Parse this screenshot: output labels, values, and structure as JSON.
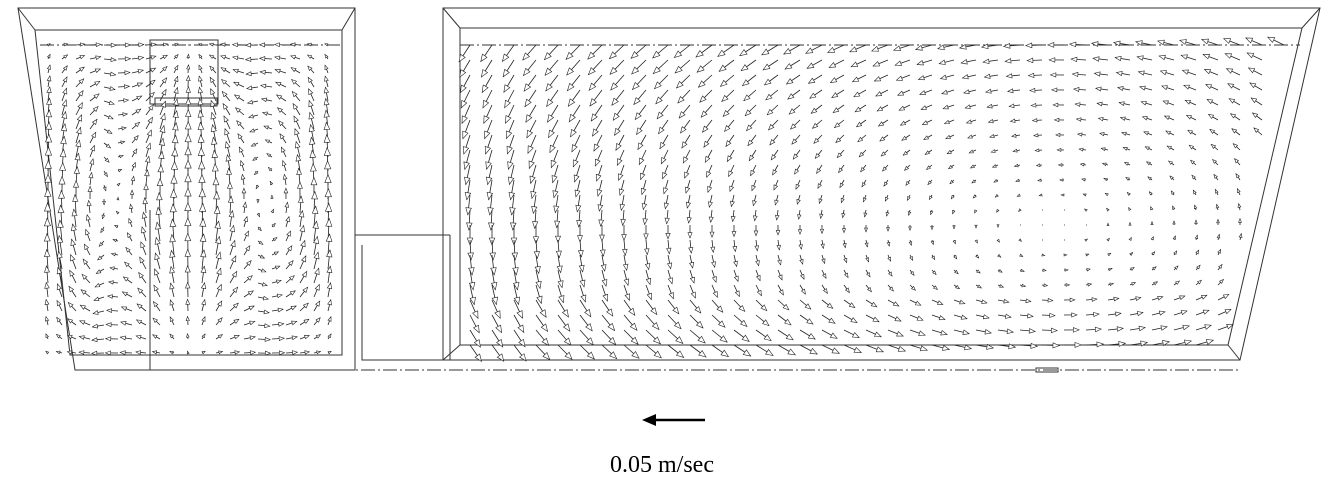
{
  "scale": {
    "label": "0.05 m/sec"
  }
}
